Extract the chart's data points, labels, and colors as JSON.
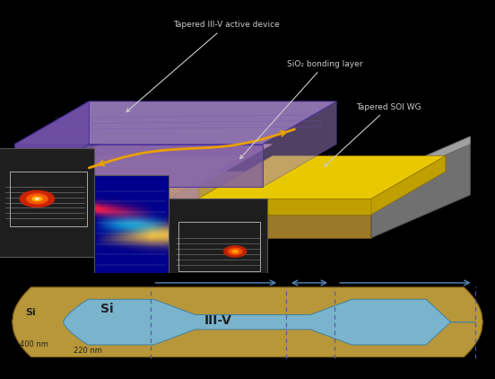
{
  "background_color": "#000000",
  "top_panel": {
    "gold_base": "#c8a850",
    "gold_side": "#9a7a28",
    "gold_top": "#b89840",
    "yellow_soi": "#e8c800",
    "yellow_soi_side": "#c0a000",
    "purple_body": "#a080c8",
    "purple_top": "#b090d8",
    "purple_front": "#8060a8",
    "purple_left": "#6848a0",
    "purple_edge": "#5a3898",
    "pink_sio2_top": "#d0a0b8",
    "pink_sio2_front": "#b08898",
    "gray_body": "#909090",
    "gray_top": "#b0b0b0",
    "gray_side": "#707070",
    "dark_panel": "#1a1a1a",
    "label_color": "#cccccc",
    "arrow_color": "#e8a000",
    "label1": "Tapered III-V active device",
    "label2": "SiO₂ bonding layer",
    "label3": "Tapered SOI WG"
  },
  "bottom_panel": {
    "gold_color": "#b8973a",
    "blue_color": "#7ab4cc",
    "arrow_color": "#5588bb",
    "label_si_left": "Si",
    "label_si_mid": "Si",
    "label_iii_v": "III-V",
    "label_400nm": "400 nm",
    "label_220nm": "220 nm"
  }
}
